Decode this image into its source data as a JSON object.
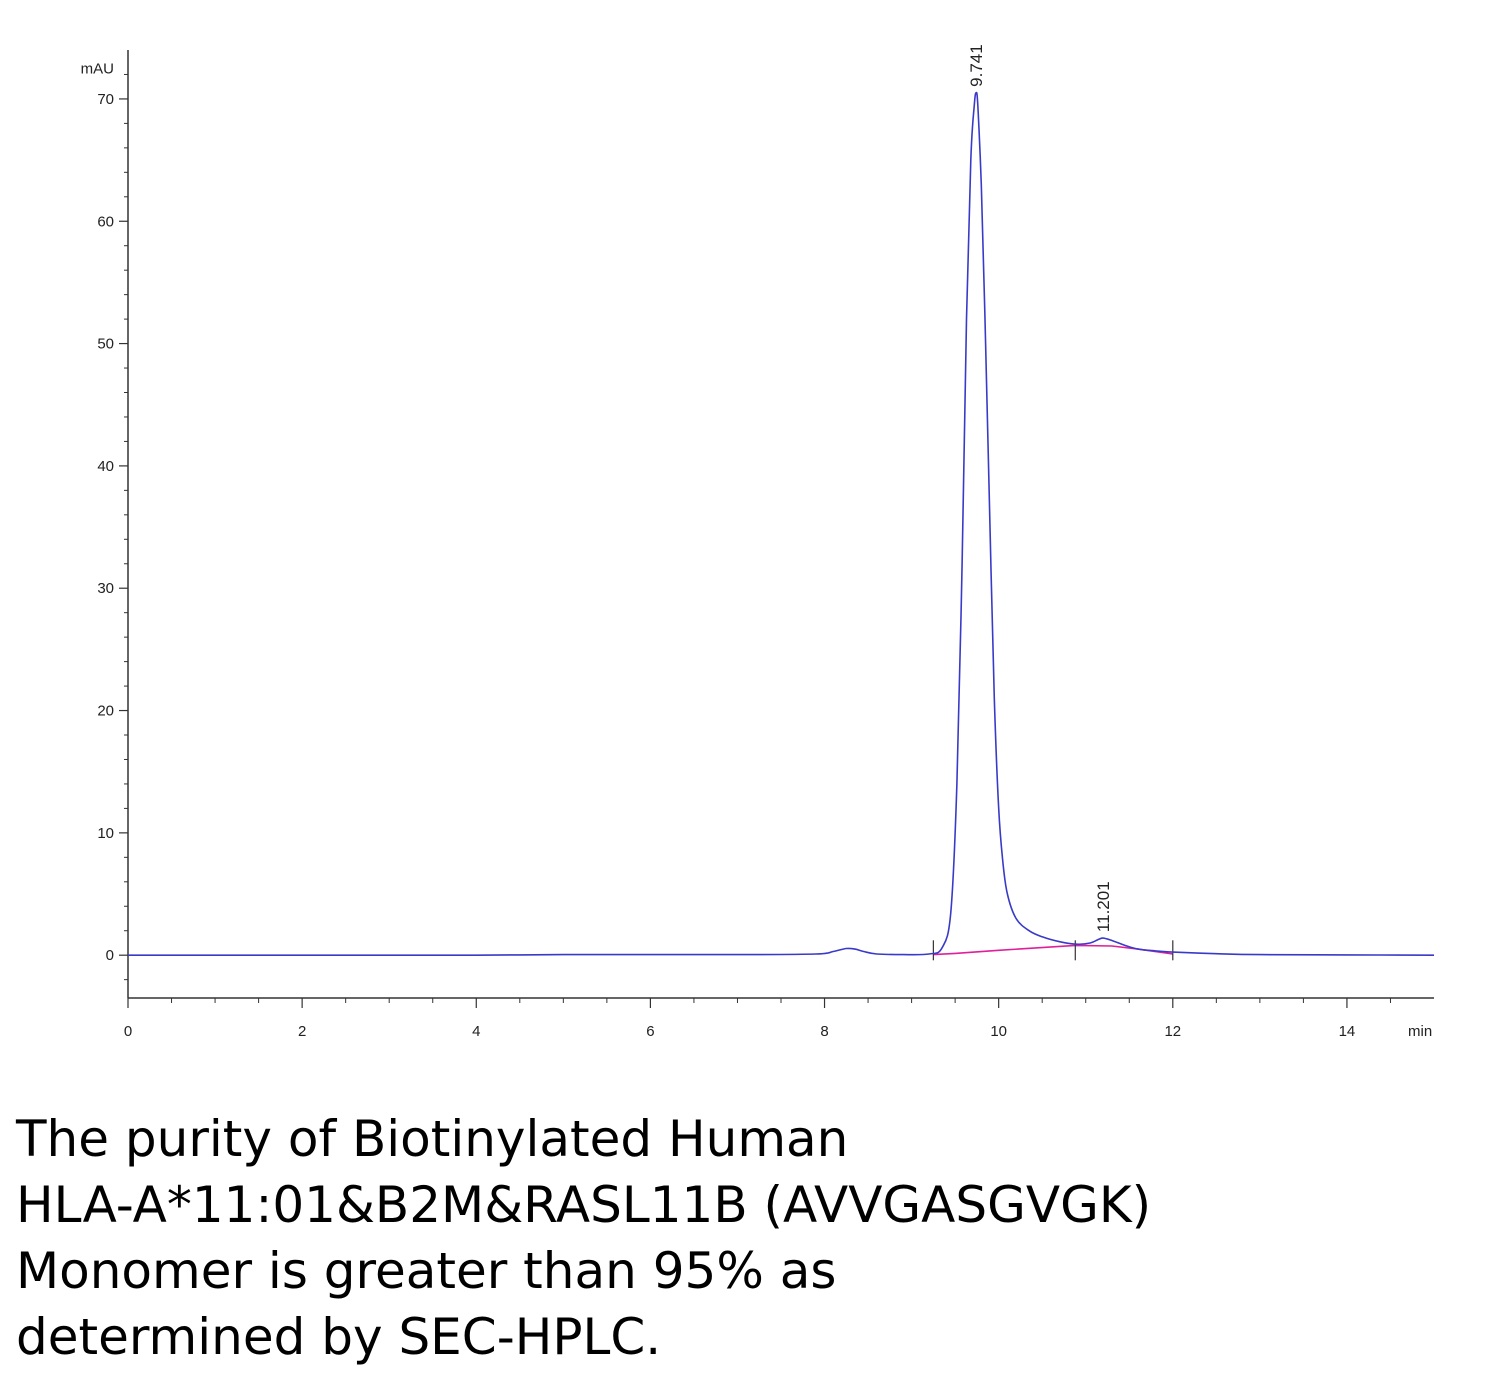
{
  "chart_data": {
    "type": "line",
    "ylabel": "mAU",
    "xlabel": "min",
    "xlim": [
      0,
      15
    ],
    "ylim": [
      -3.5,
      74
    ],
    "x_ticks": [
      0,
      2,
      4,
      6,
      8,
      10,
      12,
      14
    ],
    "y_ticks": [
      0,
      10,
      20,
      30,
      40,
      50,
      60,
      70
    ],
    "colors": {
      "signal": "#3a3ac8",
      "baseline": "#e0209a",
      "axis": "#333333"
    },
    "series": [
      {
        "x": [
          0,
          2,
          4,
          5,
          7,
          7.9,
          8.1,
          8.25,
          8.35,
          8.45,
          8.6,
          8.9,
          9.2,
          9.35,
          9.45,
          9.52,
          9.58,
          9.63,
          9.68,
          9.72,
          9.741,
          9.76,
          9.8,
          9.85,
          9.9,
          9.95,
          10.0,
          10.05,
          10.1,
          10.2,
          10.35,
          10.5,
          10.7,
          10.9,
          11.05,
          11.15,
          11.201,
          11.3,
          11.45,
          11.6,
          11.8,
          12.0,
          12.5,
          13,
          14,
          15
        ],
        "y": [
          0,
          0,
          0,
          0.05,
          0.05,
          0.1,
          0.3,
          0.55,
          0.5,
          0.3,
          0.1,
          0.05,
          0.1,
          0.6,
          3.5,
          14,
          32,
          52,
          65,
          69.5,
          70.5,
          69.5,
          63,
          50,
          35,
          21,
          12,
          7.5,
          5,
          3,
          2,
          1.5,
          1.1,
          0.9,
          1.0,
          1.3,
          1.4,
          1.2,
          0.8,
          0.5,
          0.35,
          0.25,
          0.12,
          0.05,
          0.02,
          0
        ]
      },
      {
        "x": [
          9.25,
          9.5,
          10.0,
          10.88,
          11.3,
          11.6,
          12.0
        ],
        "y": [
          0.05,
          0.15,
          0.4,
          0.8,
          0.75,
          0.5,
          0.1
        ]
      }
    ],
    "peaks": [
      {
        "rt": "9.741",
        "x": 9.741,
        "y": 70.5
      },
      {
        "rt": "11.201",
        "x": 11.201,
        "y": 1.4
      }
    ],
    "integration_markers": [
      9.25,
      10.88,
      12.0
    ]
  },
  "caption": {
    "line1": "The purity of Biotinylated Human",
    "line2": "HLA-A*11:01&B2M&RASL11B (AVVGASGVGK)",
    "line3": "Monomer is greater than 95% as",
    "line4": "determined by SEC-HPLC."
  }
}
